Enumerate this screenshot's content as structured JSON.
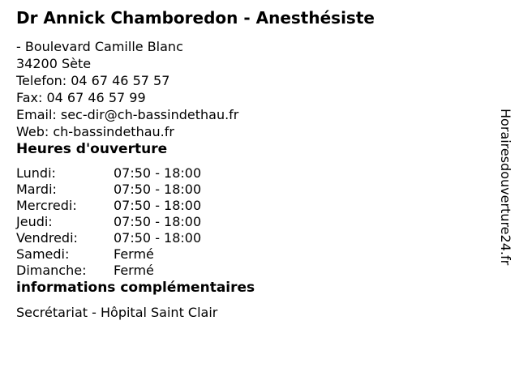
{
  "colors": {
    "background": "#ffffff",
    "text": "#000000"
  },
  "header": {
    "title": "Dr Annick Chamboredon - Anesthésiste"
  },
  "contact": {
    "lines": [
      "- Boulevard Camille Blanc",
      "34200 Sète",
      "Telefon: 04 67 46 57 57",
      "Fax: 04 67 46 57 99",
      "Email: sec-dir@ch-bassindethau.fr",
      "Web: ch-bassindethau.fr"
    ]
  },
  "sections": {
    "opening_hours": {
      "heading": "Heures d'ouverture",
      "rows": [
        {
          "day": "Lundi:",
          "hours": "07:50 - 18:00"
        },
        {
          "day": "Mardi:",
          "hours": "07:50 - 18:00"
        },
        {
          "day": "Mercredi:",
          "hours": "07:50 - 18:00"
        },
        {
          "day": "Jeudi:",
          "hours": "07:50 - 18:00"
        },
        {
          "day": "Vendredi:",
          "hours": "07:50 - 18:00"
        },
        {
          "day": "Samedi:",
          "hours": "Fermé"
        },
        {
          "day": "Dimanche:",
          "hours": "Fermé"
        }
      ]
    },
    "additional_info": {
      "heading": "informations complémentaires",
      "text": "Secrétariat - Hôpital Saint Clair"
    }
  },
  "watermark": {
    "text": "Horairesdouverture24.fr"
  }
}
